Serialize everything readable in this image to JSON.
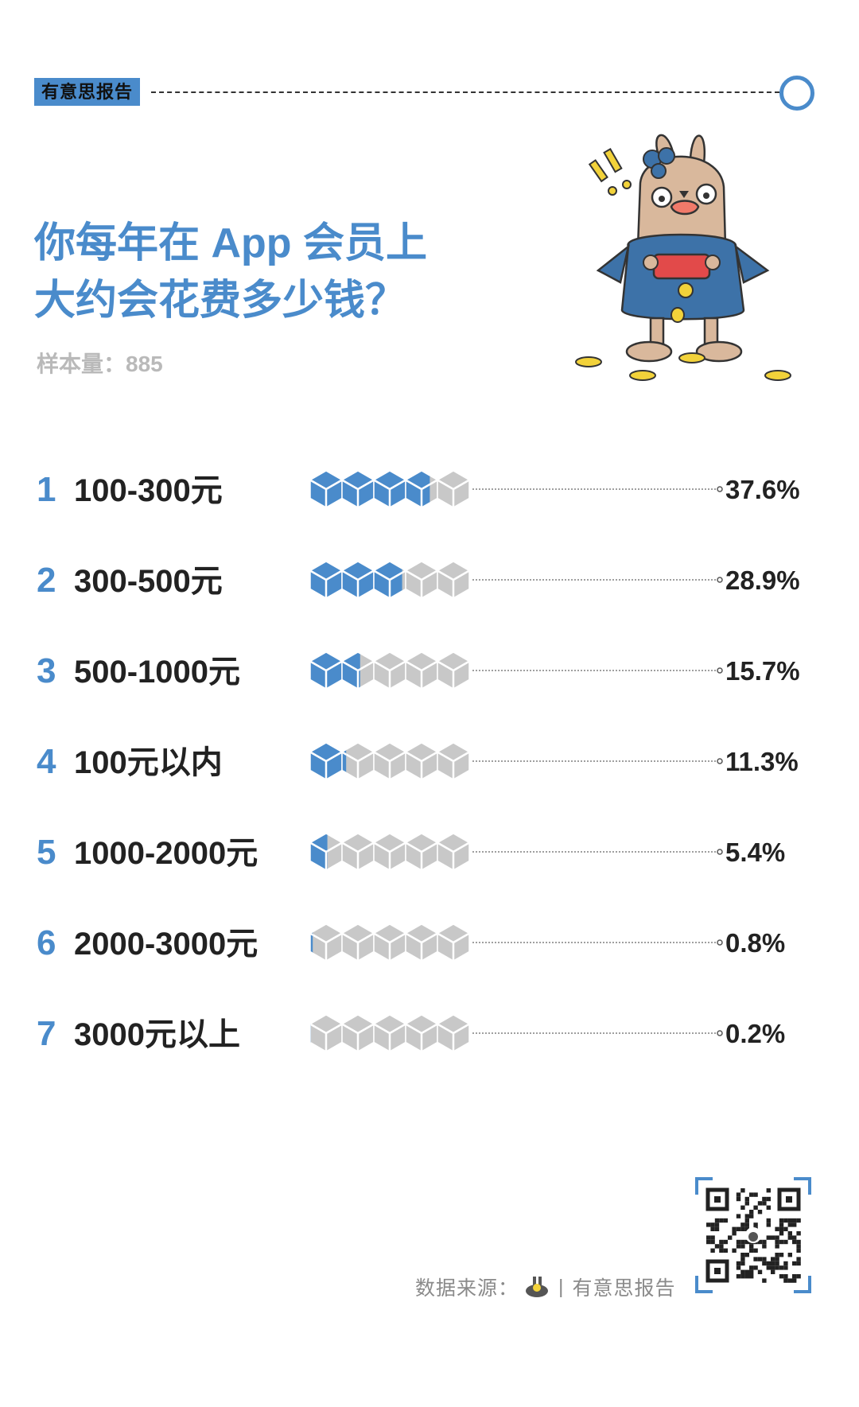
{
  "brand": {
    "tag": "有意思报告"
  },
  "title": {
    "line1": "你每年在 App 会员上",
    "line2": "大约会花费多少钱？"
  },
  "sample": {
    "text": "样本量：885"
  },
  "colors": {
    "accent": "#4a8bcb",
    "filled": "#4a8bcb",
    "empty": "#c8c8c8",
    "text": "#222222"
  },
  "chart_data": {
    "type": "bar",
    "title": "你每年在 App 会员上大约会花费多少钱？",
    "unit": "%",
    "max_value": 50,
    "icons_per_row": 5,
    "categories": [
      "100-300元",
      "300-500元",
      "500-1000元",
      "100元以内",
      "1000-2000元",
      "2000-3000元",
      "3000元以上"
    ],
    "ranks": [
      "1",
      "2",
      "3",
      "4",
      "5",
      "6",
      "7"
    ],
    "values": [
      37.6,
      28.9,
      15.7,
      11.3,
      5.4,
      0.8,
      0.2
    ],
    "value_labels": [
      "37.6%",
      "28.9%",
      "15.7%",
      "11.3%",
      "5.4%",
      "0.8%",
      "0.2%"
    ]
  },
  "footer": {
    "source_prefix": "数据来源：",
    "separator": "|",
    "source_name": "有意思报告",
    "qr_icon": "qr-code-icon",
    "mascot_icon": "rabbit-mascot-icon"
  }
}
